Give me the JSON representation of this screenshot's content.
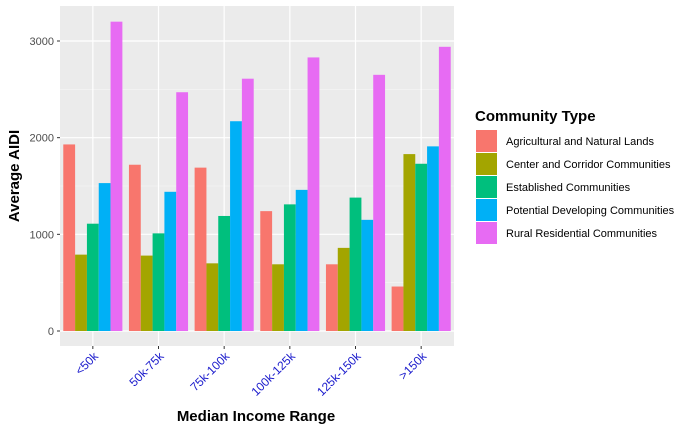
{
  "chart_data": {
    "type": "bar",
    "xlabel": "Median Income Range",
    "ylabel": "Average AIDI",
    "legend_title": "Community Type",
    "legend_position": "right",
    "grid": true,
    "ylim": [
      0,
      3300
    ],
    "yticks": [
      0,
      1000,
      2000,
      3000
    ],
    "ytick_labels": [
      "0",
      "1000",
      "2000",
      "3000"
    ],
    "categories": [
      "<50k",
      "50k-75k",
      "75k-100k",
      "100k-125k",
      "125k-150k",
      ">150k"
    ],
    "series": [
      {
        "name": "Agricultural and Natural Lands",
        "color": "#F8766D",
        "values": [
          1930,
          1720,
          1690,
          1240,
          690,
          460
        ]
      },
      {
        "name": "Center and Corridor Communities",
        "color": "#A3A500",
        "values": [
          790,
          780,
          700,
          690,
          860,
          1830
        ]
      },
      {
        "name": "Established Communities",
        "color": "#00BF7D",
        "values": [
          1110,
          1010,
          1190,
          1310,
          1380,
          1730
        ]
      },
      {
        "name": "Potential Developing Communities",
        "color": "#00B0F6",
        "values": [
          1530,
          1440,
          2170,
          1460,
          1150,
          1910
        ]
      },
      {
        "name": "Rural Residential Communities",
        "color": "#E76BF3",
        "values": [
          3200,
          2470,
          2610,
          2830,
          2650,
          2940
        ]
      }
    ]
  }
}
